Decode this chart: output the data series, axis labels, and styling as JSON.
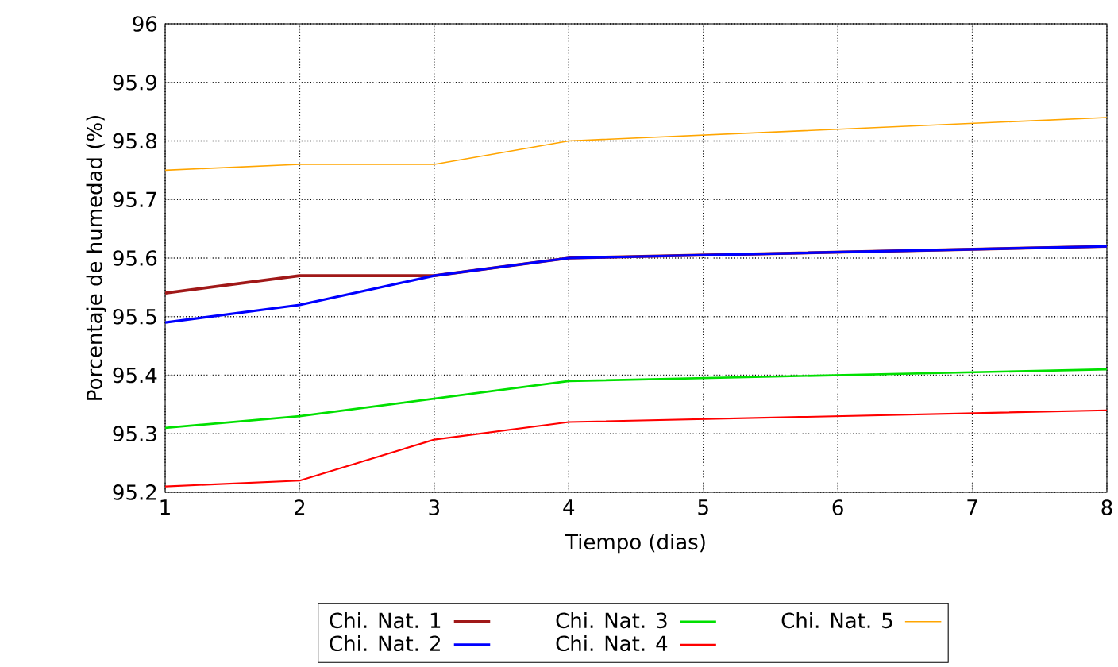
{
  "chart_data": {
    "type": "line",
    "xlabel": "Tiempo (dias)",
    "ylabel": "Porcentaje de humedad (%)",
    "x": [
      1,
      2,
      3,
      4,
      8
    ],
    "series": [
      {
        "name": "Chi. Nat. 1",
        "color": "#a01818",
        "values": [
          95.54,
          95.57,
          95.57,
          95.6,
          95.62
        ]
      },
      {
        "name": "Chi. Nat. 2",
        "color": "#0000ff",
        "values": [
          95.49,
          95.52,
          95.57,
          95.6,
          95.62
        ]
      },
      {
        "name": "Chi. Nat. 3",
        "color": "#00e000",
        "values": [
          95.31,
          95.33,
          95.36,
          95.39,
          95.41
        ]
      },
      {
        "name": "Chi. Nat. 4",
        "color": "#ff0000",
        "values": [
          95.21,
          95.22,
          95.29,
          95.32,
          95.34
        ]
      },
      {
        "name": "Chi. Nat. 5",
        "color": "#ffa500",
        "values": [
          95.75,
          95.76,
          95.76,
          95.8,
          95.84
        ]
      }
    ],
    "xlim": [
      1,
      8
    ],
    "xticks": [
      1,
      2,
      3,
      4,
      5,
      6,
      7,
      8
    ],
    "ylim": [
      95.2,
      96
    ],
    "yticks": [
      95.2,
      95.3,
      95.4,
      95.5,
      95.6,
      95.7,
      95.8,
      95.9,
      96
    ],
    "grid": true,
    "legend": "bottom",
    "marker": "none",
    "line_style": "solid"
  }
}
